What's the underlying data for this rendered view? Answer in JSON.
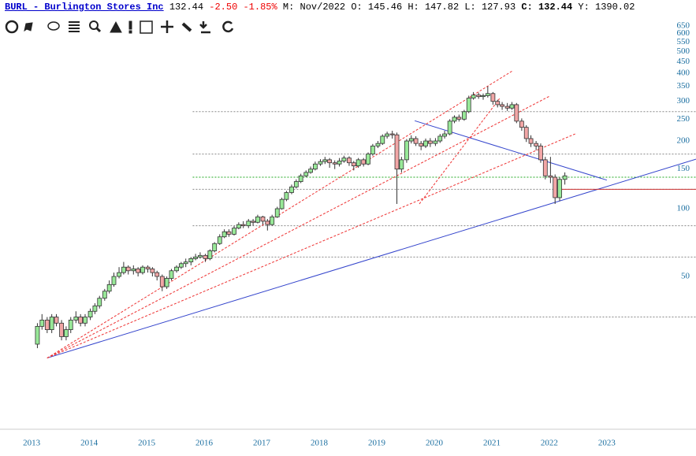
{
  "header": {
    "symbol": "BURL - Burlington Stores Inc",
    "last": "132.44",
    "change": "-2.50",
    "change_pct": "-1.85%",
    "fields": [
      "M: Nov/2022",
      "O: 145.46",
      "H: 147.82",
      "L: 127.93",
      "C: 132.44",
      "Y: 1390.02"
    ]
  },
  "chart_data": {
    "type": "candlestick",
    "log_scale": true,
    "xlim": [
      2012.45,
      2024.55
    ],
    "xticks": [
      2013,
      2014,
      2015,
      2016,
      2017,
      2018,
      2019,
      2020,
      2021,
      2022,
      2023
    ],
    "ylim": [
      10.9,
      692
    ],
    "yticks": [
      50,
      100,
      150,
      200,
      250,
      300,
      350,
      400,
      450,
      500,
      550,
      600,
      650
    ],
    "up_color": "#98e898",
    "down_color": "#f2a6a6",
    "x": [
      2013.1,
      2013.18,
      2013.27,
      2013.35,
      2013.43,
      2013.52,
      2013.6,
      2013.68,
      2013.77,
      2013.85,
      2013.93,
      2014.02,
      2014.1,
      2014.18,
      2014.27,
      2014.35,
      2014.43,
      2014.52,
      2014.6,
      2014.68,
      2014.77,
      2014.85,
      2014.93,
      2015.02,
      2015.1,
      2015.18,
      2015.27,
      2015.35,
      2015.43,
      2015.52,
      2015.6,
      2015.68,
      2015.77,
      2015.85,
      2015.93,
      2016.02,
      2016.1,
      2016.18,
      2016.27,
      2016.35,
      2016.43,
      2016.52,
      2016.6,
      2016.68,
      2016.77,
      2016.85,
      2016.93,
      2017.02,
      2017.1,
      2017.18,
      2017.27,
      2017.35,
      2017.43,
      2017.52,
      2017.6,
      2017.68,
      2017.77,
      2017.85,
      2017.93,
      2018.02,
      2018.1,
      2018.18,
      2018.27,
      2018.35,
      2018.43,
      2018.52,
      2018.6,
      2018.68,
      2018.77,
      2018.85,
      2018.93,
      2019.02,
      2019.1,
      2019.18,
      2019.27,
      2019.35,
      2019.43,
      2019.52,
      2019.6,
      2019.68,
      2019.77,
      2019.85,
      2019.93,
      2020.02,
      2020.1,
      2020.18,
      2020.27,
      2020.35,
      2020.43,
      2020.52,
      2020.6,
      2020.68,
      2020.77,
      2020.85,
      2020.93,
      2021.02,
      2021.1,
      2021.18,
      2021.27,
      2021.35,
      2021.43,
      2021.52,
      2021.6,
      2021.68,
      2021.77,
      2021.85,
      2021.93,
      2022.02,
      2022.1,
      2022.18,
      2022.27
    ],
    "open": [
      25,
      30,
      32,
      29,
      33,
      31,
      27,
      29,
      32,
      33,
      31,
      33,
      35,
      37,
      40,
      43,
      46,
      50,
      52,
      55,
      53,
      54,
      52,
      55,
      54,
      52,
      50,
      45,
      49,
      53,
      55,
      57,
      58,
      60,
      61,
      62,
      60,
      65,
      70,
      75,
      79,
      77,
      82,
      85,
      84,
      88,
      87,
      92,
      88,
      85,
      92,
      100,
      110,
      118,
      125,
      132,
      140,
      145,
      150,
      158,
      162,
      165,
      160,
      158,
      163,
      168,
      160,
      155,
      165,
      158,
      175,
      190,
      195,
      210,
      215,
      213,
      150,
      165,
      200,
      205,
      195,
      190,
      200,
      195,
      200,
      210,
      215,
      245,
      255,
      250,
      270,
      310,
      320,
      315,
      318,
      325,
      300,
      290,
      285,
      280,
      290,
      245,
      230,
      205,
      195,
      190,
      165,
      140,
      138,
      112,
      135
    ],
    "high": [
      31,
      34,
      33,
      34,
      34,
      32,
      30,
      33,
      35,
      34,
      34,
      36,
      38,
      41,
      44,
      48,
      52,
      55,
      58,
      56,
      56,
      55,
      56,
      56,
      55,
      53,
      51,
      50,
      54,
      56,
      58,
      60,
      61,
      63,
      64,
      63,
      66,
      71,
      77,
      81,
      81,
      84,
      87,
      88,
      90,
      90,
      94,
      93,
      90,
      94,
      102,
      112,
      120,
      128,
      135,
      143,
      148,
      154,
      162,
      166,
      170,
      168,
      164,
      168,
      172,
      171,
      163,
      168,
      168,
      178,
      194,
      200,
      214,
      220,
      222,
      218,
      170,
      204,
      212,
      210,
      200,
      205,
      206,
      206,
      215,
      222,
      250,
      260,
      262,
      275,
      318,
      330,
      328,
      325,
      350,
      330,
      305,
      298,
      295,
      298,
      295,
      252,
      235,
      212,
      200,
      195,
      170,
      170,
      142,
      138,
      145
    ],
    "low": [
      24,
      29,
      28,
      28,
      30,
      26,
      26,
      28,
      31,
      30,
      30,
      32,
      34,
      36,
      39,
      42,
      45,
      49,
      51,
      51,
      51,
      50,
      51,
      52,
      50,
      48,
      43,
      44,
      48,
      52,
      54,
      55,
      56,
      59,
      60,
      58,
      59,
      64,
      69,
      74,
      75,
      76,
      81,
      82,
      82,
      84,
      86,
      85,
      80,
      84,
      91,
      99,
      108,
      116,
      123,
      130,
      138,
      143,
      148,
      155,
      158,
      152,
      150,
      154,
      160,
      155,
      148,
      152,
      154,
      156,
      172,
      186,
      192,
      205,
      205,
      105,
      145,
      160,
      195,
      190,
      182,
      186,
      188,
      190,
      196,
      205,
      212,
      240,
      244,
      246,
      266,
      305,
      308,
      305,
      312,
      290,
      282,
      275,
      272,
      275,
      240,
      222,
      198,
      188,
      182,
      160,
      135,
      130,
      105,
      108,
      128
    ],
    "close": [
      30,
      32,
      29,
      33,
      31,
      27,
      29,
      32,
      33,
      31,
      33,
      35,
      37,
      40,
      43,
      46,
      50,
      52,
      55,
      53,
      54,
      52,
      55,
      54,
      52,
      50,
      45,
      49,
      53,
      55,
      57,
      58,
      60,
      61,
      62,
      60,
      65,
      70,
      75,
      79,
      77,
      82,
      85,
      84,
      88,
      87,
      92,
      88,
      85,
      92,
      100,
      110,
      118,
      125,
      132,
      140,
      145,
      150,
      158,
      162,
      165,
      160,
      158,
      163,
      168,
      160,
      155,
      165,
      158,
      175,
      190,
      195,
      210,
      215,
      213,
      150,
      165,
      200,
      205,
      195,
      190,
      200,
      195,
      200,
      210,
      215,
      245,
      255,
      250,
      270,
      310,
      320,
      315,
      318,
      325,
      300,
      290,
      285,
      280,
      290,
      245,
      230,
      205,
      195,
      190,
      165,
      140,
      138,
      112,
      135,
      140
    ],
    "hlines": [
      {
        "value": 270,
        "color": "#888"
      },
      {
        "value": 175,
        "color": "#888"
      },
      {
        "value": 138,
        "color": "#2a2"
      },
      {
        "value": 122,
        "color": "#888"
      },
      {
        "value": 84,
        "color": "#888"
      },
      {
        "value": 61,
        "color": "#888"
      },
      {
        "value": 33,
        "color": "#888"
      }
    ],
    "trendlines": [
      {
        "x": [
          2013.27,
          2024.55
        ],
        "values": [
          21.7,
          166
        ],
        "color": "#3344cc"
      },
      {
        "x": [
          2019.66,
          2023.0
        ],
        "values": [
          246,
          134
        ],
        "color": "#3344cc"
      },
      {
        "x": [
          2013.27,
          2021.36
        ],
        "values": [
          21.7,
          410
        ],
        "color": "#e33",
        "dashed": true
      },
      {
        "x": [
          2013.27,
          2022.0
        ],
        "values": [
          21.7,
          316
        ],
        "color": "#e33",
        "dashed": true
      },
      {
        "x": [
          2013.27,
          2022.45
        ],
        "values": [
          21.7,
          215
        ],
        "color": "#e33",
        "dashed": true
      },
      {
        "x": [
          2019.74,
          2021.14
        ],
        "values": [
          105,
          310
        ],
        "color": "#e33",
        "dashed": true
      },
      {
        "x": [
          2022.2,
          2024.55
        ],
        "values": [
          122,
          122
        ],
        "color": "#c33"
      }
    ]
  }
}
